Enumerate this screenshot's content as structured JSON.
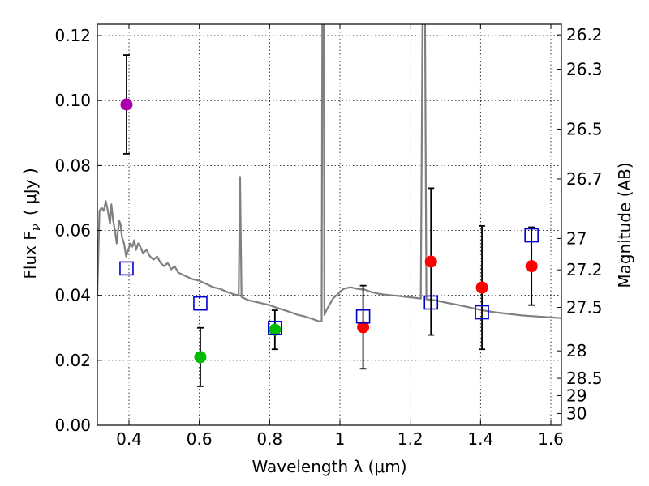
{
  "chart_data": {
    "type": "scatter",
    "xlabel": "Wavelength  λ (μm)",
    "ylabel_left": "Flux  F",
    "ylabel_left_sub": "ν",
    "ylabel_left_unit": "( μJy )",
    "ylabel_right": "Magnitude (AB)",
    "xlim": [
      0.31,
      1.63
    ],
    "ylim": [
      0.0,
      0.1235
    ],
    "x_ticks": [
      0.4,
      0.6,
      0.8,
      1.0,
      1.2,
      1.4,
      1.6
    ],
    "x_tick_labels": [
      "0.4",
      "0.6",
      "0.8",
      "1",
      "1.2",
      "1.4",
      "1.6"
    ],
    "y_ticks": [
      0.0,
      0.02,
      0.04,
      0.06,
      0.08,
      0.1,
      0.12
    ],
    "y_tick_labels": [
      "0.00",
      "0.02",
      "0.04",
      "0.06",
      "0.08",
      "0.10",
      "0.12"
    ],
    "mag_ticks": [
      26.2,
      26.3,
      26.5,
      26.7,
      27,
      27.2,
      27.5,
      28,
      28.5,
      29,
      30
    ],
    "mag_tick_labels": [
      "26.2",
      "26.3",
      "26.5",
      "26.7",
      "27",
      "27.2",
      "27.5",
      "28",
      "28.5",
      "29",
      "30"
    ],
    "grid": true,
    "colors": {
      "model": "#808080",
      "purple": "#aa00aa",
      "green": "#00bb00",
      "red": "#ff0000",
      "blue": "#0000cc"
    },
    "observed": [
      {
        "x": 0.393,
        "y": 0.0988,
        "err": 0.0152,
        "color": "purple"
      },
      {
        "x": 0.603,
        "y": 0.021,
        "err": 0.009,
        "color": "green"
      },
      {
        "x": 0.815,
        "y": 0.0294,
        "err": 0.006,
        "color": "green"
      },
      {
        "x": 1.066,
        "y": 0.0302,
        "err": 0.0128,
        "color": "red"
      },
      {
        "x": 1.259,
        "y": 0.0504,
        "err": 0.0226,
        "color": "red"
      },
      {
        "x": 1.404,
        "y": 0.0424,
        "err": 0.019,
        "color": "red"
      },
      {
        "x": 1.545,
        "y": 0.049,
        "err": 0.012,
        "color": "red"
      }
    ],
    "model_points": [
      {
        "x": 0.393,
        "y": 0.0483
      },
      {
        "x": 0.603,
        "y": 0.0375
      },
      {
        "x": 0.815,
        "y": 0.03
      },
      {
        "x": 1.066,
        "y": 0.0335
      },
      {
        "x": 1.259,
        "y": 0.0378
      },
      {
        "x": 1.404,
        "y": 0.0348
      },
      {
        "x": 1.545,
        "y": 0.0585
      }
    ],
    "model_spectrum": [
      [
        0.31,
        0.04
      ],
      [
        0.316,
        0.066
      ],
      [
        0.322,
        0.067
      ],
      [
        0.328,
        0.066
      ],
      [
        0.334,
        0.069
      ],
      [
        0.34,
        0.066
      ],
      [
        0.346,
        0.062
      ],
      [
        0.35,
        0.068
      ],
      [
        0.355,
        0.063
      ],
      [
        0.36,
        0.06
      ],
      [
        0.365,
        0.056
      ],
      [
        0.368,
        0.059
      ],
      [
        0.372,
        0.063
      ],
      [
        0.376,
        0.062
      ],
      [
        0.38,
        0.058
      ],
      [
        0.386,
        0.056
      ],
      [
        0.392,
        0.052
      ],
      [
        0.398,
        0.054
      ],
      [
        0.404,
        0.056
      ],
      [
        0.41,
        0.055
      ],
      [
        0.415,
        0.057
      ],
      [
        0.42,
        0.054
      ],
      [
        0.426,
        0.056
      ],
      [
        0.432,
        0.055
      ],
      [
        0.44,
        0.053
      ],
      [
        0.45,
        0.054
      ],
      [
        0.46,
        0.052
      ],
      [
        0.47,
        0.051
      ],
      [
        0.48,
        0.052
      ],
      [
        0.49,
        0.05
      ],
      [
        0.5,
        0.049
      ],
      [
        0.51,
        0.05
      ],
      [
        0.52,
        0.048
      ],
      [
        0.53,
        0.049
      ],
      [
        0.54,
        0.047
      ],
      [
        0.56,
        0.046
      ],
      [
        0.58,
        0.045
      ],
      [
        0.6,
        0.0445
      ],
      [
        0.62,
        0.0435
      ],
      [
        0.64,
        0.0425
      ],
      [
        0.66,
        0.042
      ],
      [
        0.68,
        0.041
      ],
      [
        0.7,
        0.0403
      ],
      [
        0.712,
        0.04
      ],
      [
        0.716,
        0.0765
      ],
      [
        0.72,
        0.0395
      ],
      [
        0.74,
        0.0385
      ],
      [
        0.76,
        0.038
      ],
      [
        0.78,
        0.0375
      ],
      [
        0.8,
        0.037
      ],
      [
        0.82,
        0.0362
      ],
      [
        0.84,
        0.0355
      ],
      [
        0.86,
        0.0348
      ],
      [
        0.88,
        0.034
      ],
      [
        0.9,
        0.0335
      ],
      [
        0.92,
        0.0328
      ],
      [
        0.94,
        0.032
      ],
      [
        0.948,
        0.032
      ],
      [
        0.95,
        0.125
      ],
      [
        0.954,
        0.125
      ],
      [
        0.956,
        0.034
      ],
      [
        0.962,
        0.0355
      ],
      [
        0.97,
        0.037
      ],
      [
        0.98,
        0.039
      ],
      [
        0.99,
        0.04
      ],
      [
        1.0,
        0.041
      ],
      [
        1.01,
        0.042
      ],
      [
        1.03,
        0.0425
      ],
      [
        1.05,
        0.042
      ],
      [
        1.07,
        0.0418
      ],
      [
        1.09,
        0.041
      ],
      [
        1.11,
        0.0405
      ],
      [
        1.13,
        0.0402
      ],
      [
        1.15,
        0.04
      ],
      [
        1.17,
        0.0398
      ],
      [
        1.19,
        0.0395
      ],
      [
        1.21,
        0.0393
      ],
      [
        1.23,
        0.039
      ],
      [
        1.235,
        0.125
      ],
      [
        1.242,
        0.125
      ],
      [
        1.246,
        0.0388
      ],
      [
        1.27,
        0.0385
      ],
      [
        1.3,
        0.0378
      ],
      [
        1.33,
        0.0372
      ],
      [
        1.36,
        0.0365
      ],
      [
        1.4,
        0.0355
      ],
      [
        1.44,
        0.0348
      ],
      [
        1.48,
        0.0343
      ],
      [
        1.52,
        0.0338
      ],
      [
        1.56,
        0.0335
      ],
      [
        1.6,
        0.0332
      ],
      [
        1.63,
        0.033
      ]
    ]
  }
}
